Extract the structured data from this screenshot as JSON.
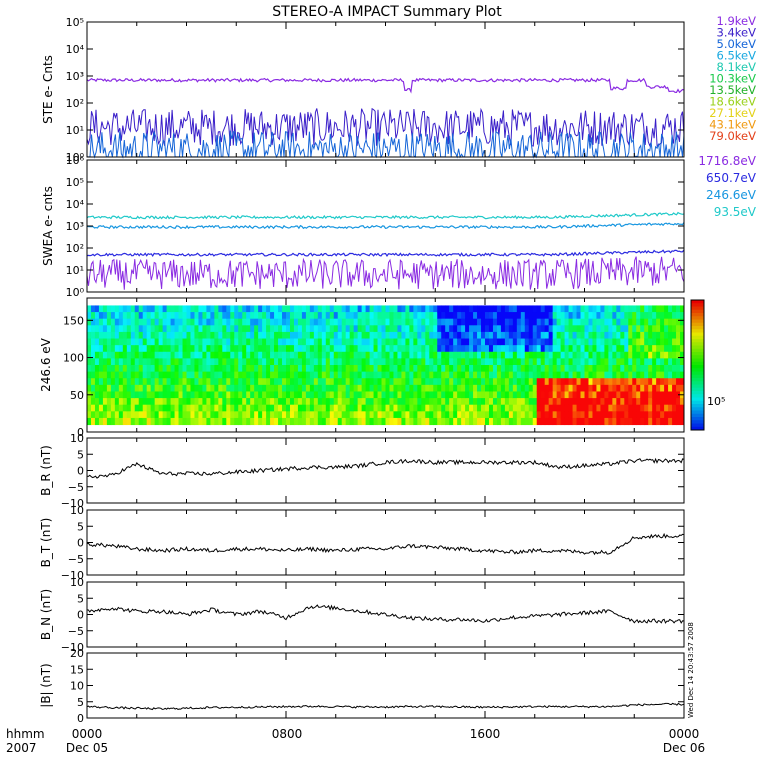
{
  "title": "STEREO-A IMPACT Summary Plot",
  "ste_legend": [
    {
      "label": "1.9keV",
      "color": "#8a2be2"
    },
    {
      "label": "3.4keV",
      "color": "#3a1fc9"
    },
    {
      "label": "5.0keV",
      "color": "#1565d8"
    },
    {
      "label": "6.5keV",
      "color": "#17a8e0"
    },
    {
      "label": "8.1keV",
      "color": "#1ec9b0"
    },
    {
      "label": "10.3keV",
      "color": "#19c94a"
    },
    {
      "label": "13.5keV",
      "color": "#20b028"
    },
    {
      "label": "18.6keV",
      "color": "#9ad11a"
    },
    {
      "label": "27.1keV",
      "color": "#e3d21a"
    },
    {
      "label": "43.1keV",
      "color": "#f09a12"
    },
    {
      "label": "79.0keV",
      "color": "#e3401a"
    }
  ],
  "swea_legend": [
    {
      "label": "1716.8eV",
      "color": "#8a2be2"
    },
    {
      "label": "650.7eV",
      "color": "#2a2ae0"
    },
    {
      "label": "246.6eV",
      "color": "#1796e0"
    },
    {
      "label": "93.5eV",
      "color": "#1fc9c9"
    }
  ],
  "x_axis": {
    "hhmm_label": "hhmm",
    "year_label": "2007",
    "ticks": [
      "0000",
      "0800",
      "1600",
      "0000"
    ],
    "dates": [
      "Dec 05",
      "Dec 06"
    ]
  },
  "side_stamp": "Wed Dec 14 20:43:57 2008",
  "colorbar_label": "10⁵",
  "chart_data": [
    {
      "type": "line",
      "panel": "STE",
      "ylabel": "STE e- Cnts",
      "yscale": "log",
      "yticks": [
        "10⁰",
        "10¹",
        "10²",
        "10³",
        "10⁴",
        "10⁵"
      ],
      "ylim": [
        1,
        100000
      ],
      "series": [
        {
          "name": "1.9keV",
          "approx_level": 700,
          "notes": "drops to ~300 near 1230 and 2040"
        },
        {
          "name": "3.4keV",
          "approx_level": 8
        },
        {
          "name": "5.0keV",
          "approx_level": 1.2
        }
      ]
    },
    {
      "type": "line",
      "panel": "SWEA",
      "ylabel": "SWEA e- cnts",
      "yscale": "log",
      "yticks": [
        "10⁰",
        "10¹",
        "10²",
        "10³",
        "10⁴",
        "10⁵",
        "10⁶"
      ],
      "ylim": [
        1,
        1000000
      ],
      "series": [
        {
          "name": "93.5eV",
          "approx_level": 2500
        },
        {
          "name": "246.6eV",
          "approx_level": 900
        },
        {
          "name": "650.7eV",
          "approx_level": 50
        },
        {
          "name": "1716.8eV",
          "approx_level": 4
        }
      ]
    },
    {
      "type": "heatmap",
      "panel": "PAD",
      "ylabel": "246.6 eV",
      "yticks": [
        "0",
        "50",
        "100",
        "150"
      ],
      "ylim": [
        0,
        180
      ]
    },
    {
      "type": "line",
      "panel": "BR",
      "ylabel": "B_R (nT)",
      "yticks": [
        "−10",
        "−5",
        "0",
        "5",
        "10"
      ],
      "ylim": [
        -10,
        10
      ],
      "x": [
        0,
        1,
        2,
        3,
        4,
        5,
        6,
        7,
        8,
        9,
        10,
        11,
        12,
        13,
        14,
        15,
        16,
        17,
        18,
        19,
        20,
        21,
        22,
        23,
        24
      ],
      "values": [
        -2,
        -1.5,
        2,
        -1,
        -1,
        -1,
        -0.5,
        0,
        0.5,
        1,
        1,
        1.5,
        2.5,
        3,
        2.5,
        2.5,
        2.5,
        2.5,
        2.5,
        1,
        1.5,
        2,
        3,
        3,
        3
      ]
    },
    {
      "type": "line",
      "panel": "BT",
      "ylabel": "B_T (nT)",
      "yticks": [
        "−10",
        "−5",
        "0",
        "5",
        "10"
      ],
      "ylim": [
        -10,
        10
      ],
      "x": [
        0,
        1,
        2,
        3,
        4,
        5,
        6,
        7,
        8,
        9,
        10,
        11,
        12,
        13,
        14,
        15,
        16,
        17,
        18,
        19,
        20,
        21,
        22,
        23,
        24
      ],
      "values": [
        -0.5,
        -1,
        -2,
        -2.5,
        -2,
        -2.5,
        -2,
        -2,
        -2.5,
        -2,
        -2.5,
        -2,
        -2,
        -1,
        -1.5,
        -2,
        -2.5,
        -3,
        -2.5,
        -2.5,
        -3,
        -3,
        1.5,
        2,
        2
      ]
    },
    {
      "type": "line",
      "panel": "BN",
      "ylabel": "B_N (nT)",
      "yticks": [
        "−10",
        "−5",
        "0",
        "5",
        "10"
      ],
      "ylim": [
        -10,
        10
      ],
      "x": [
        0,
        1,
        2,
        3,
        4,
        5,
        6,
        7,
        8,
        9,
        10,
        11,
        12,
        13,
        14,
        15,
        16,
        17,
        18,
        19,
        20,
        21,
        22,
        23,
        24
      ],
      "values": [
        1,
        2,
        1,
        1,
        0,
        1.5,
        0,
        1,
        -1,
        2.5,
        2,
        1,
        0,
        -1,
        -1.5,
        -1.5,
        -2,
        -1,
        -0.5,
        0,
        0.5,
        1,
        -2,
        -2,
        -2
      ]
    },
    {
      "type": "line",
      "panel": "BMAG",
      "ylabel": "|B| (nT)",
      "yticks": [
        "0",
        "5",
        "10",
        "15",
        "20"
      ],
      "ylim": [
        0,
        20
      ],
      "x": [
        0,
        1,
        2,
        3,
        4,
        5,
        6,
        7,
        8,
        9,
        10,
        11,
        12,
        13,
        14,
        15,
        16,
        17,
        18,
        19,
        20,
        21,
        22,
        23,
        24
      ],
      "values": [
        3.5,
        3.2,
        3,
        2.8,
        3,
        3.2,
        3.3,
        3.4,
        3.5,
        3.6,
        3.5,
        3.4,
        3.4,
        3.5,
        3.5,
        3.4,
        3.3,
        3.4,
        3.5,
        3.5,
        3.5,
        3.5,
        4,
        4.2,
        4.2
      ]
    }
  ]
}
